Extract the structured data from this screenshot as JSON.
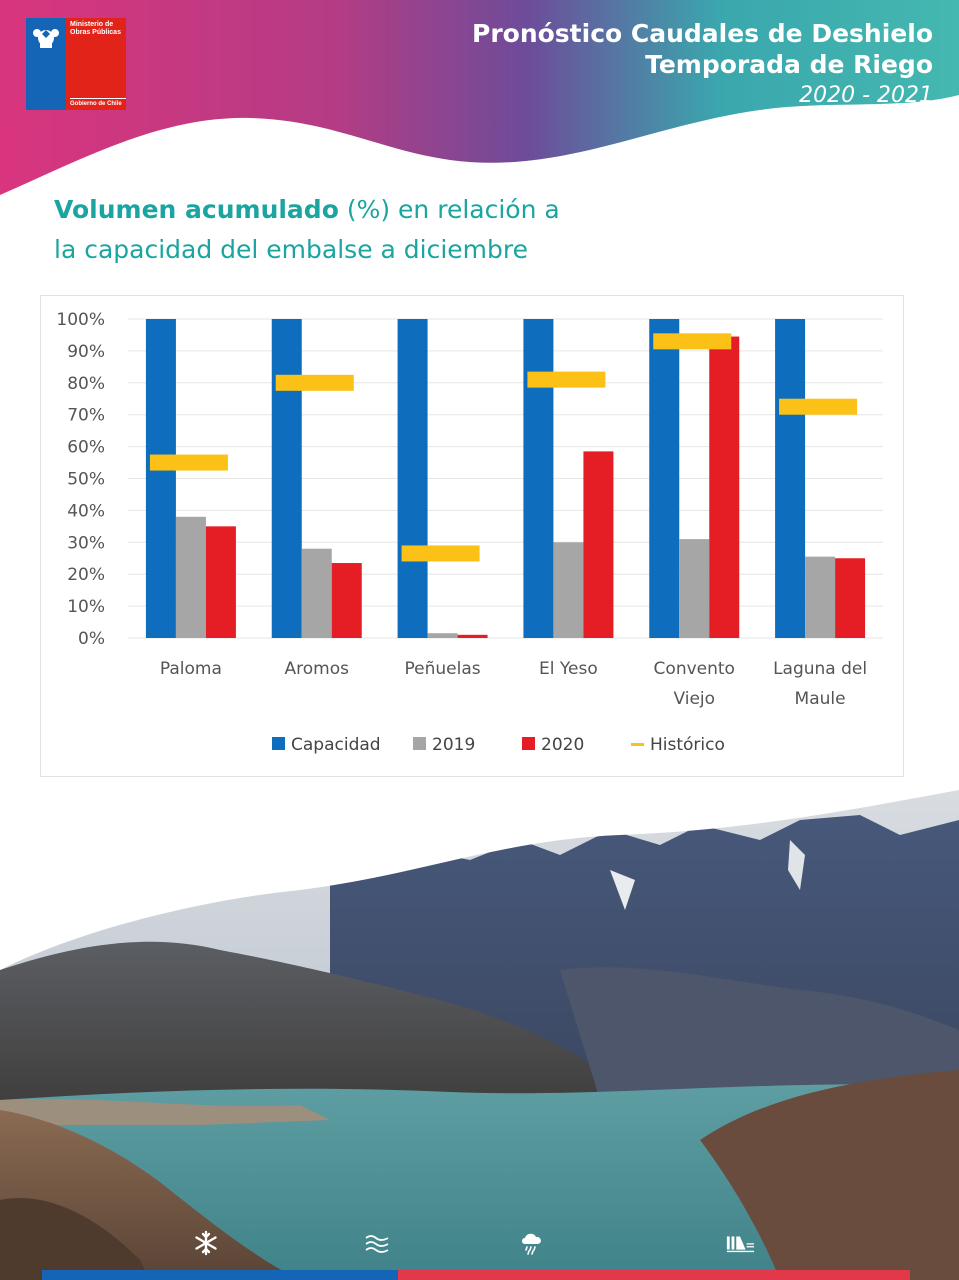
{
  "header": {
    "title_line1": "Pronóstico Caudales de Deshielo",
    "title_line2": "Temporada de Riego",
    "season": "2020 - 2021"
  },
  "logo": {
    "ministry": "Ministerio de Obras Públicas",
    "government": "Gobierno de Chile"
  },
  "headline": {
    "bold_part": "Volumen acumulado",
    "rest_line1": " (%) en relación a",
    "line2": "la capacidad del embalse a diciembre"
  },
  "colors": {
    "capacidad": "#0e6dbd",
    "y2019": "#a6a6a6",
    "y2020": "#e41e24",
    "historico": "#fcc116",
    "teal": "#1aa5a0",
    "magenta": "#d0317f"
  },
  "chart_data": {
    "type": "bar",
    "categories": [
      "Paloma",
      "Aromos",
      "Peñuelas",
      "El Yeso",
      "Convento Viejo",
      "Laguna del Maule"
    ],
    "category_lines": [
      [
        "Paloma"
      ],
      [
        "Aromos"
      ],
      [
        "Peñuelas"
      ],
      [
        "El Yeso"
      ],
      [
        "Convento",
        "Viejo"
      ],
      [
        "Laguna del",
        "Maule"
      ]
    ],
    "series": [
      {
        "name": "Capacidad",
        "kind": "bar",
        "color": "#0e6dbd",
        "values": [
          100,
          100,
          100,
          100,
          100,
          100
        ]
      },
      {
        "name": "2019",
        "kind": "bar",
        "color": "#a6a6a6",
        "values": [
          38,
          28,
          1.5,
          30,
          31,
          25.5
        ]
      },
      {
        "name": "2020",
        "kind": "bar",
        "color": "#e41e24",
        "values": [
          35,
          23.5,
          1,
          58.5,
          94.5,
          25
        ]
      },
      {
        "name": "Histórico",
        "kind": "marker",
        "color": "#fcc116",
        "values": [
          55,
          80,
          26.5,
          81,
          93,
          72.5
        ]
      }
    ],
    "y_ticks": [
      "0%",
      "10%",
      "20%",
      "30%",
      "40%",
      "50%",
      "60%",
      "70%",
      "80%",
      "90%",
      "100%"
    ],
    "ylim": [
      0,
      100
    ],
    "grid": true,
    "legend_position": "bottom"
  },
  "footer_icons": [
    "snowflake-icon",
    "water-waves-icon",
    "rain-cloud-icon",
    "dam-icon"
  ]
}
